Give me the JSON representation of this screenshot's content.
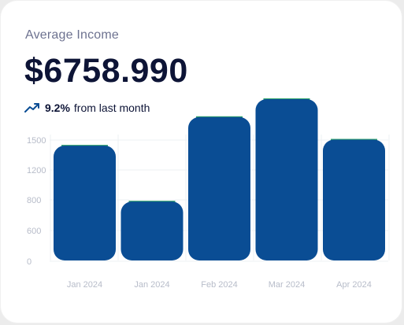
{
  "card": {
    "title": "Average Income",
    "value": "$6758.990",
    "change_percent": "9.2%",
    "change_text": "from last month",
    "trend_icon": "trend-up-arrow-icon"
  },
  "colors": {
    "bar": "#0a4d94",
    "bar_top_accent": "#2fa36b",
    "grid": "#eef0f3",
    "tick": "#b7bcc9",
    "title": "#6d7290",
    "value": "#0d1436",
    "trend": "#0a4d94"
  },
  "chart_data": {
    "type": "bar",
    "categories": [
      "Jan 2024",
      "Jan 2024",
      "Feb 2024",
      "Mar 2024",
      "Apr 2024"
    ],
    "values": [
      1345,
      690,
      1680,
      1890,
      1415
    ],
    "yticks": [
      0,
      600,
      800,
      1200,
      1500
    ],
    "ylim": [
      0,
      1900
    ],
    "grid": true,
    "legend": "none",
    "title": "",
    "xlabel": "",
    "ylabel": ""
  }
}
